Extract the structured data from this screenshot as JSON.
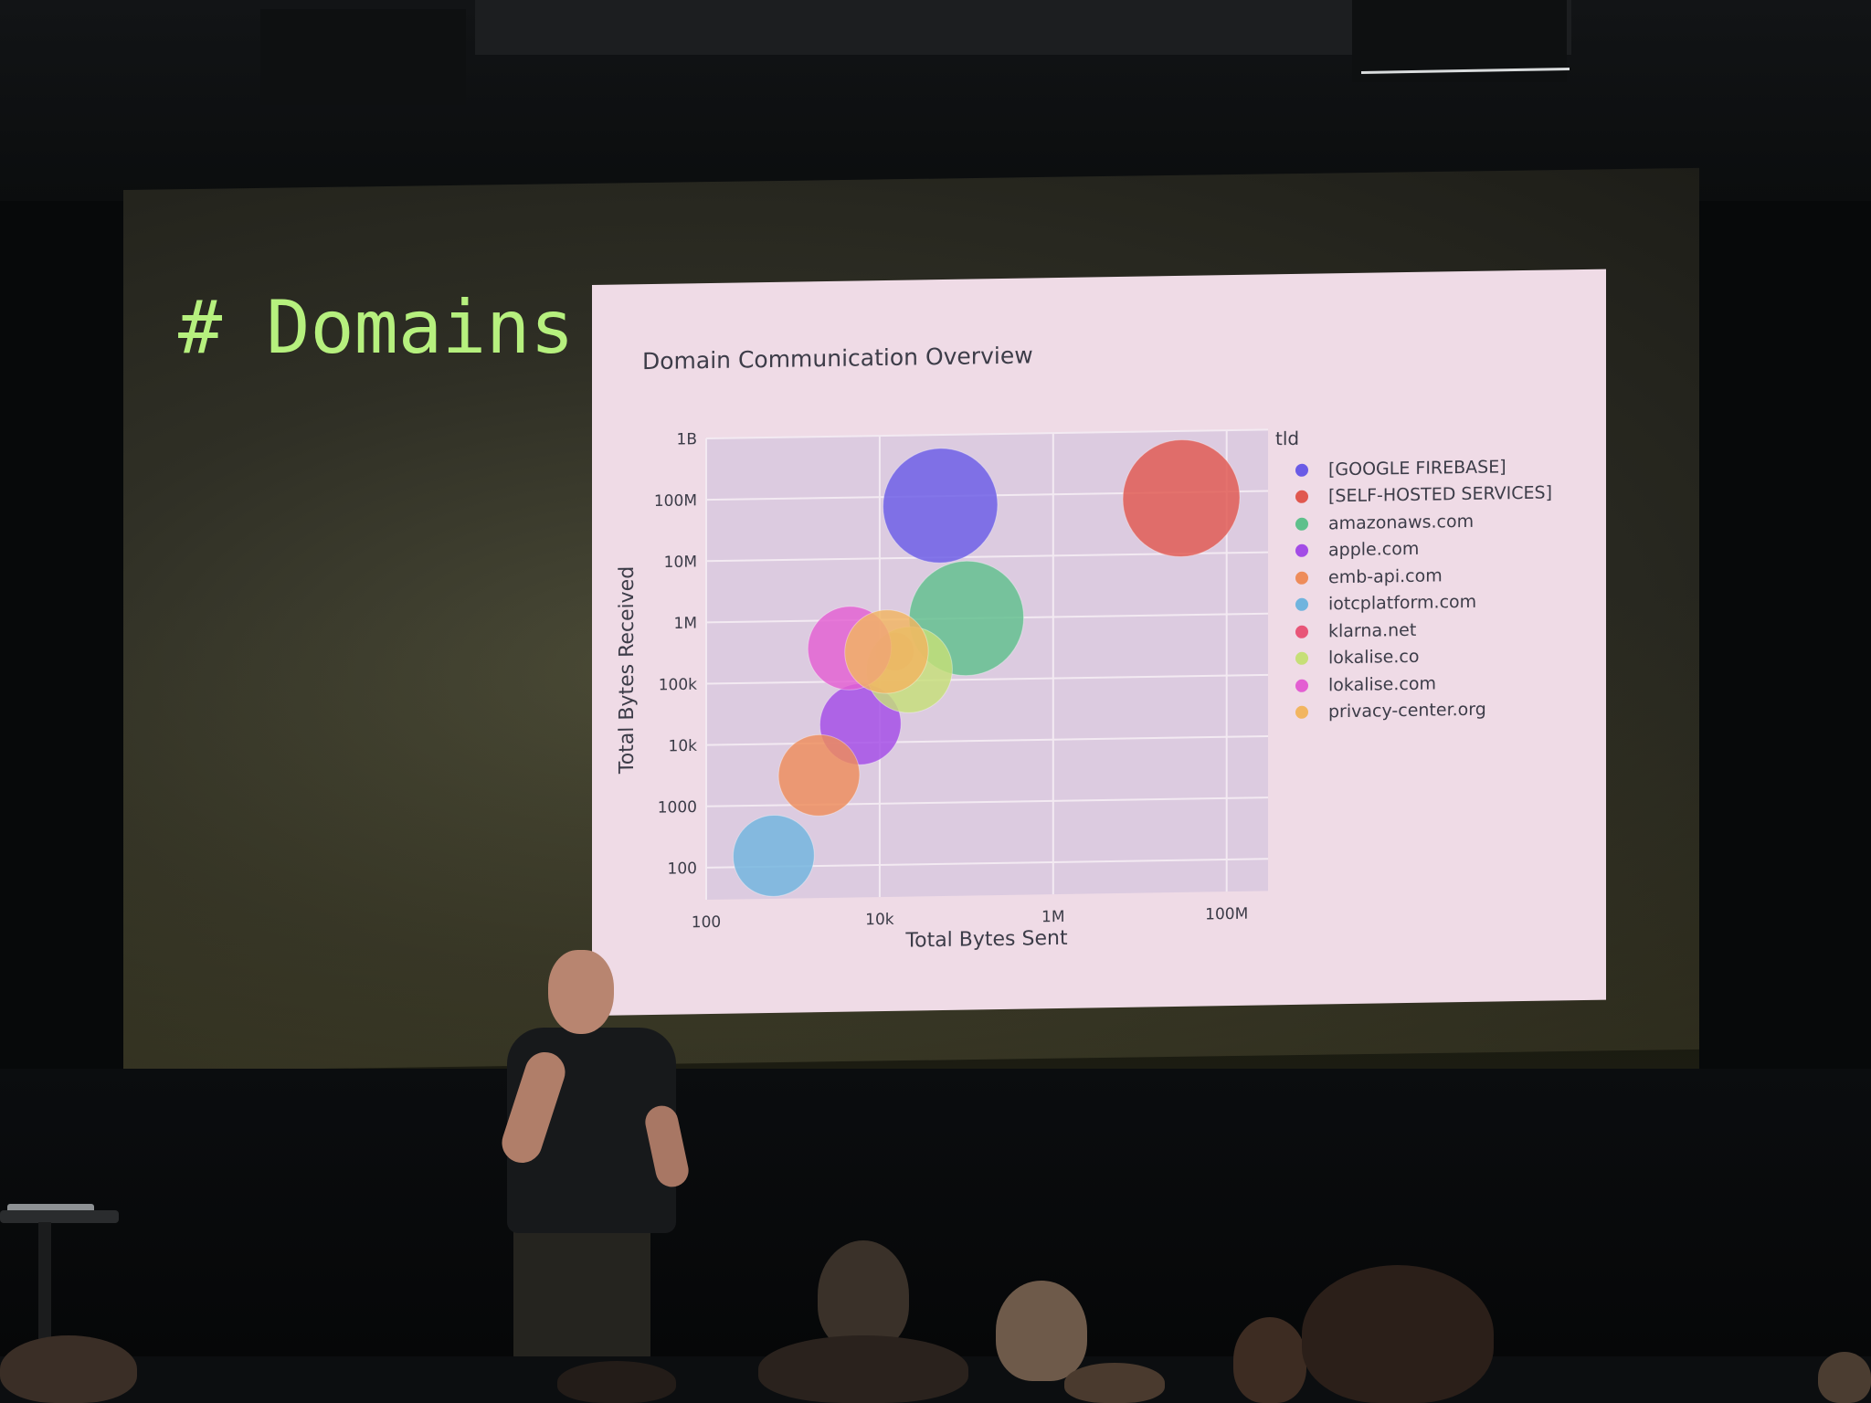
{
  "slide": {
    "heading": "# Domains"
  },
  "chart_data": {
    "type": "scatter",
    "title": "Domain Communication Overview",
    "xlabel": "Total Bytes Sent",
    "ylabel": "Total Bytes Received",
    "xscale": "log",
    "yscale": "log",
    "xlim": [
      100,
      300000000
    ],
    "ylim": [
      30,
      1000000000
    ],
    "x_ticks": [
      {
        "value": 100,
        "label": "100"
      },
      {
        "value": 10000,
        "label": "10k"
      },
      {
        "value": 1000000,
        "label": "1M"
      },
      {
        "value": 100000000,
        "label": "100M"
      }
    ],
    "y_ticks": [
      {
        "value": 100,
        "label": "100"
      },
      {
        "value": 1000,
        "label": "1000"
      },
      {
        "value": 10000,
        "label": "10k"
      },
      {
        "value": 100000,
        "label": "100k"
      },
      {
        "value": 1000000,
        "label": "1M"
      },
      {
        "value": 10000000,
        "label": "10M"
      },
      {
        "value": 100000000,
        "label": "100M"
      },
      {
        "value": 1000000000,
        "label": "1B"
      }
    ],
    "grid": true,
    "legend_title": "tld",
    "legend_position": "right",
    "series": [
      {
        "name": "[GOOGLE FIREBASE]",
        "color": "#6a5be6",
        "x": 50000,
        "y": 70000000,
        "size": 48
      },
      {
        "name": "[SELF-HOSTED SERVICES]",
        "color": "#e0584f",
        "x": 30000000,
        "y": 80000000,
        "size": 49
      },
      {
        "name": "amazonaws.com",
        "color": "#5fc08c",
        "x": 100000,
        "y": 1000000,
        "size": 48
      },
      {
        "name": "apple.com",
        "color": "#a34ce6",
        "x": 6000,
        "y": 20000,
        "size": 34
      },
      {
        "name": "emb-api.com",
        "color": "#ee8c5a",
        "x": 2000,
        "y": 3000,
        "size": 34
      },
      {
        "name": "iotcplatform.com",
        "color": "#70b4de",
        "x": 600,
        "y": 150,
        "size": 34
      },
      {
        "name": "klarna.net",
        "color": "#e85578",
        "x": 15000,
        "y": 300000,
        "size": 16
      },
      {
        "name": "lokalise.co",
        "color": "#c6df78",
        "x": 22000,
        "y": 150000,
        "size": 36
      },
      {
        "name": "lokalise.com",
        "color": "#e35fd2",
        "x": 4500,
        "y": 350000,
        "size": 35
      },
      {
        "name": "privacy-center.org",
        "color": "#f2b560",
        "x": 12000,
        "y": 300000,
        "size": 35
      }
    ]
  }
}
